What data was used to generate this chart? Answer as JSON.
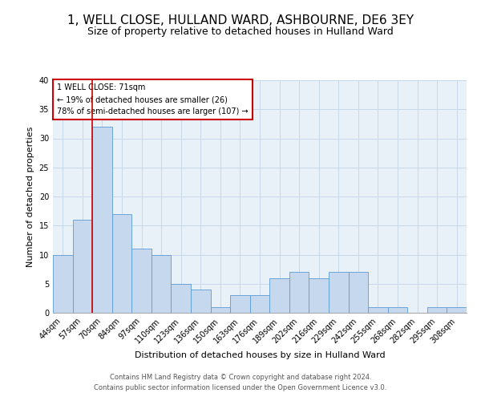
{
  "title": "1, WELL CLOSE, HULLAND WARD, ASHBOURNE, DE6 3EY",
  "subtitle": "Size of property relative to detached houses in Hulland Ward",
  "xlabel": "Distribution of detached houses by size in Hulland Ward",
  "ylabel": "Number of detached properties",
  "footnote1": "Contains HM Land Registry data © Crown copyright and database right 2024.",
  "footnote2": "Contains public sector information licensed under the Open Government Licence v3.0.",
  "categories": [
    "44sqm",
    "57sqm",
    "70sqm",
    "84sqm",
    "97sqm",
    "110sqm",
    "123sqm",
    "136sqm",
    "150sqm",
    "163sqm",
    "176sqm",
    "189sqm",
    "202sqm",
    "216sqm",
    "229sqm",
    "242sqm",
    "255sqm",
    "268sqm",
    "282sqm",
    "295sqm",
    "308sqm"
  ],
  "values": [
    10,
    16,
    32,
    17,
    11,
    10,
    5,
    4,
    1,
    3,
    3,
    6,
    7,
    6,
    7,
    7,
    1,
    1,
    0,
    1,
    1
  ],
  "bar_color": "#c5d8ed",
  "bar_edge_color": "#5b9bd5",
  "annotation_box_text": [
    "1 WELL CLOSE: 71sqm",
    "← 19% of detached houses are smaller (26)",
    "78% of semi-detached houses are larger (107) →"
  ],
  "annotation_box_color": "#ffffff",
  "annotation_box_edge_color": "#cc0000",
  "annotation_line_color": "#cc0000",
  "red_line_x": 1.5,
  "ylim": [
    0,
    40
  ],
  "yticks": [
    0,
    5,
    10,
    15,
    20,
    25,
    30,
    35,
    40
  ],
  "grid_color": "#c8d8e8",
  "background_color": "#e8f0f8",
  "title_fontsize": 11,
  "subtitle_fontsize": 9,
  "axis_label_fontsize": 8,
  "tick_fontsize": 7,
  "annotation_fontsize": 7,
  "footnote_fontsize": 6
}
